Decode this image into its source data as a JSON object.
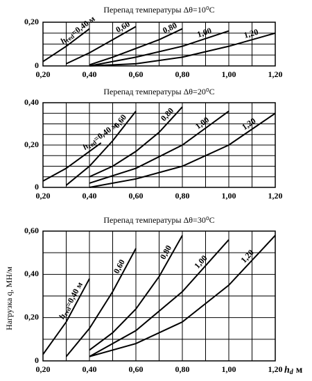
{
  "chart_data": [
    {
      "type": "line",
      "title": "Перепад температуры Δθ=10⁰C",
      "curve_symbol": "h",
      "curve_subscript": "red",
      "xlim": [
        0.2,
        1.2
      ],
      "ylim": [
        0,
        0.2
      ],
      "xticks": [
        {
          "value": 0.2,
          "label": "0,20"
        },
        {
          "value": 0.4,
          "label": "0,40"
        },
        {
          "value": 0.6,
          "label": "0,60"
        },
        {
          "value": 0.8,
          "label": "0,80"
        },
        {
          "value": 1.0,
          "label": "1,00"
        },
        {
          "value": 1.2,
          "label": "1,20"
        }
      ],
      "yticks": [
        0,
        {
          "value": 0.2,
          "label": "0,20"
        }
      ],
      "xgrid": [
        0.3,
        0.5,
        0.7,
        0.9,
        1.1
      ],
      "ygrid": [
        0.05,
        0.1,
        0.15
      ],
      "color": "#000000",
      "series": [
        {
          "name": "=0,40 м",
          "x": [
            0.2,
            0.3,
            0.4
          ],
          "values": [
            0.02,
            0.09,
            0.17
          ]
        },
        {
          "name": "0,60",
          "x": [
            0.3,
            0.4,
            0.5,
            0.6
          ],
          "values": [
            0.01,
            0.06,
            0.12,
            0.18
          ]
        },
        {
          "name": "0,80",
          "x": [
            0.4,
            0.5,
            0.6,
            0.7,
            0.8
          ],
          "values": [
            0.005,
            0.04,
            0.08,
            0.12,
            0.17
          ]
        },
        {
          "name": "1,00",
          "x": [
            0.4,
            0.6,
            0.8,
            1.0
          ],
          "values": [
            0,
            0.04,
            0.09,
            0.16
          ]
        },
        {
          "name": "1,20",
          "x": [
            0.4,
            0.6,
            0.8,
            1.0,
            1.2
          ],
          "values": [
            0,
            0.01,
            0.04,
            0.09,
            0.15
          ]
        }
      ]
    },
    {
      "type": "line",
      "title": "Перепад температуры Δθ=20⁰C",
      "curve_symbol": "h",
      "curve_subscript": "red",
      "xlim": [
        0.2,
        1.2
      ],
      "ylim": [
        0,
        0.4
      ],
      "xticks": [
        {
          "value": 0.2,
          "label": "0,20"
        },
        {
          "value": 0.4,
          "label": "0,40"
        },
        {
          "value": 0.6,
          "label": "0,60"
        },
        {
          "value": 0.8,
          "label": "0,80"
        },
        {
          "value": 1.0,
          "label": "1,00"
        },
        {
          "value": 1.2,
          "label": "1,20"
        }
      ],
      "yticks": [
        0,
        {
          "value": 0.2,
          "label": "0,20"
        },
        {
          "value": 0.4,
          "label": "0,40"
        }
      ],
      "xgrid": [
        0.3,
        0.5,
        0.7,
        0.9,
        1.1
      ],
      "ygrid": [
        0.05,
        0.1,
        0.15,
        0.25,
        0.3,
        0.35
      ],
      "color": "#000000",
      "series": [
        {
          "name": "=0,40 м",
          "x": [
            0.2,
            0.3,
            0.4,
            0.45
          ],
          "values": [
            0.03,
            0.09,
            0.17,
            0.21
          ]
        },
        {
          "name": "0,60",
          "x": [
            0.3,
            0.4,
            0.5,
            0.6
          ],
          "values": [
            0.01,
            0.1,
            0.22,
            0.36
          ]
        },
        {
          "name": "0,80",
          "x": [
            0.4,
            0.5,
            0.6,
            0.7,
            0.8
          ],
          "values": [
            0.05,
            0.1,
            0.17,
            0.26,
            0.38
          ]
        },
        {
          "name": "1,00",
          "x": [
            0.4,
            0.6,
            0.8,
            1.0
          ],
          "values": [
            0.02,
            0.09,
            0.2,
            0.36
          ]
        },
        {
          "name": "1,20",
          "x": [
            0.4,
            0.6,
            0.8,
            1.0,
            1.2
          ],
          "values": [
            0,
            0.04,
            0.1,
            0.2,
            0.35
          ]
        }
      ]
    },
    {
      "type": "line",
      "title": "Перепад температуры Δθ=30⁰C",
      "curve_symbol": "h",
      "curve_subscript": "red",
      "xlim": [
        0.2,
        1.2
      ],
      "ylim": [
        0,
        0.6
      ],
      "xticks": [
        {
          "value": 0.2,
          "label": "0,20"
        },
        {
          "value": 0.4,
          "label": "0,40"
        },
        {
          "value": 0.6,
          "label": "0,60"
        },
        {
          "value": 0.8,
          "label": "0,80"
        },
        {
          "value": 1.0,
          "label": "1,00"
        },
        {
          "value": 1.2,
          "label": "1,20"
        }
      ],
      "yticks": [
        0,
        {
          "value": 0.2,
          "label": "0,20"
        },
        {
          "value": 0.4,
          "label": "0,40"
        },
        {
          "value": 0.6,
          "label": "0,60"
        }
      ],
      "xgrid": [
        0.3,
        0.5,
        0.7,
        0.9,
        1.1
      ],
      "ygrid": [
        0.1,
        0.3,
        0.5
      ],
      "color": "#000000",
      "series": [
        {
          "name": "=0,40 м",
          "x": [
            0.2,
            0.3,
            0.4
          ],
          "values": [
            0.03,
            0.18,
            0.38
          ]
        },
        {
          "name": "0,60",
          "x": [
            0.3,
            0.4,
            0.5,
            0.6
          ],
          "values": [
            0.02,
            0.15,
            0.32,
            0.52
          ]
        },
        {
          "name": "0,80",
          "x": [
            0.4,
            0.5,
            0.6,
            0.7,
            0.8
          ],
          "values": [
            0.05,
            0.13,
            0.24,
            0.39,
            0.58
          ]
        },
        {
          "name": "1,00",
          "x": [
            0.4,
            0.6,
            0.8,
            1.0
          ],
          "values": [
            0.02,
            0.14,
            0.32,
            0.56
          ]
        },
        {
          "name": "1,20",
          "x": [
            0.4,
            0.6,
            0.8,
            1.0,
            1.2
          ],
          "values": [
            0.02,
            0.08,
            0.18,
            0.35,
            0.58
          ]
        }
      ]
    }
  ],
  "axis_labels": {
    "ylabel": "Нагрузка q, МН/м",
    "xlabel_symbol": "h",
    "xlabel_subscript": "d",
    "xlabel_unit": "м"
  }
}
